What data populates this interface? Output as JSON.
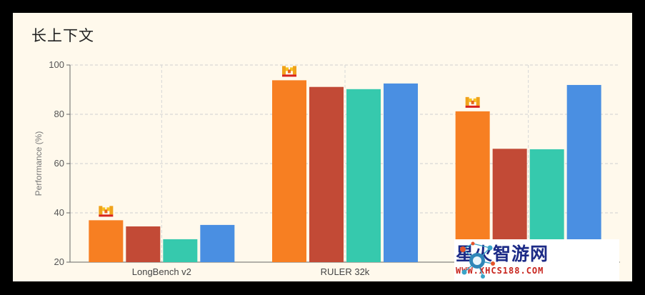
{
  "chart_data": {
    "type": "bar",
    "title": "长上下文",
    "ylabel": "Performance (%)",
    "xlabel": "",
    "ylim": [
      20,
      100
    ],
    "yticks": [
      20,
      40,
      60,
      80,
      100
    ],
    "grid": true,
    "categories": [
      "LongBench v2",
      "RULER 32k",
      ""
    ],
    "series": [
      {
        "color": "#f77f22",
        "values": [
          37.0,
          93.8,
          81.2
        ]
      },
      {
        "color": "#c24a36",
        "values": [
          34.5,
          91.1,
          66.0
        ]
      },
      {
        "color": "#36c9ad",
        "values": [
          29.3,
          90.2,
          65.8
        ]
      },
      {
        "color": "#4a8fe2",
        "values": [
          35.1,
          92.5,
          91.9
        ]
      }
    ],
    "best_marker_series": 0
  },
  "watermark": {
    "name": "星火智游网",
    "url": "WWW.XHCS188.COM"
  }
}
